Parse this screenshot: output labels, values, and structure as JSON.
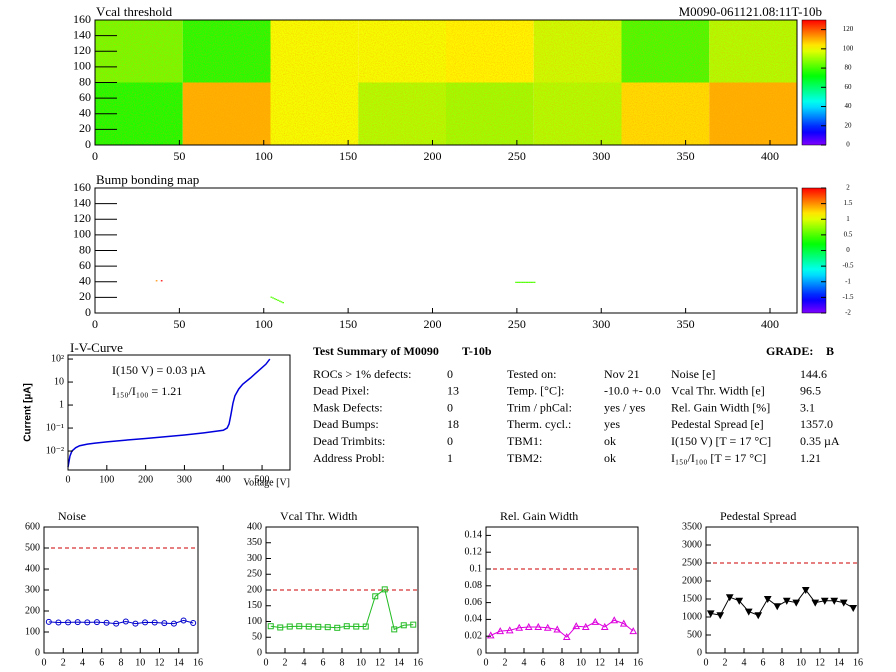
{
  "chart_data": [
    {
      "type": "heatmap",
      "title": "Vcal threshold",
      "subtitle": "M0090-061121.08:11T-10b",
      "xlim": [
        0,
        416
      ],
      "ylim": [
        0,
        160
      ],
      "xticks": [
        0,
        50,
        100,
        150,
        200,
        250,
        300,
        350,
        400
      ],
      "yticks": [
        0,
        20,
        40,
        60,
        80,
        100,
        120,
        140,
        160
      ],
      "xbins": [
        0,
        52,
        104,
        156,
        208,
        260,
        312,
        364,
        416
      ],
      "ybins": [
        0,
        80,
        160
      ],
      "values": [
        [
          75,
          110,
          100,
          92,
          90,
          92,
          105,
          110
        ],
        [
          85,
          76,
          100,
          100,
          102,
          95,
          80,
          92
        ]
      ],
      "zlim": [
        0,
        130
      ],
      "zticks": [
        0,
        20,
        40,
        60,
        80,
        100,
        120
      ]
    },
    {
      "type": "map",
      "title": "Bump bonding map",
      "xlim": [
        0,
        416
      ],
      "ylim": [
        0,
        160
      ],
      "xticks": [
        0,
        50,
        100,
        150,
        200,
        250,
        300,
        350,
        400
      ],
      "yticks": [
        0,
        20,
        40,
        60,
        80,
        100,
        120,
        140,
        160
      ],
      "x": [
        36,
        39,
        104,
        105,
        106,
        107,
        108,
        109,
        110,
        111,
        249,
        250,
        251,
        252,
        253,
        254,
        255,
        256,
        257,
        258,
        259,
        260
      ],
      "y": [
        41,
        41,
        20,
        19,
        18,
        17,
        16,
        15,
        14,
        13,
        39,
        39,
        39,
        39,
        39,
        39,
        39,
        39,
        39,
        39,
        39,
        39
      ],
      "values": [
        1.5,
        2,
        0.5,
        0.5,
        0.5,
        0.5,
        0.5,
        0.5,
        0.5,
        0.5,
        0.5,
        0.5,
        0.5,
        0.5,
        0.5,
        0.5,
        0.5,
        0.5,
        0.5,
        0.5,
        0.5,
        0.5
      ],
      "zlim": [
        -2,
        2
      ],
      "zticks": [
        -2,
        -1.5,
        -1,
        -0.5,
        0,
        0.5,
        1,
        1.5,
        2
      ]
    },
    {
      "type": "line",
      "title": "I-V-Curve",
      "xlabel": "Voltage [V]",
      "ylabel": "Current [µA]",
      "log_y": true,
      "color": "#0000dd",
      "annotations": [
        "I(150 V) = 0.03 µA",
        "I₁₅₀/I₁₀₀ = 1.21"
      ],
      "x": [
        0,
        5,
        10,
        20,
        30,
        50,
        70,
        100,
        150,
        200,
        250,
        300,
        350,
        400,
        410,
        415,
        420,
        425,
        430,
        440,
        450,
        470,
        490,
        510,
        520
      ],
      "values": [
        0.002,
        0.006,
        0.01,
        0.014,
        0.017,
        0.02,
        0.022,
        0.025,
        0.03,
        0.035,
        0.042,
        0.05,
        0.062,
        0.08,
        0.1,
        0.15,
        0.4,
        1.2,
        2.5,
        5,
        8,
        15,
        30,
        60,
        100
      ],
      "xlim": [
        0,
        572
      ],
      "ylim": [
        0.0015,
        150
      ],
      "xticks": [
        0,
        100,
        200,
        300,
        400,
        500
      ],
      "yticks": [
        {
          "value": 0.01,
          "label": "10⁻²"
        },
        {
          "value": 0.1,
          "label": "10⁻¹"
        },
        1,
        10,
        {
          "value": 100,
          "label": "10²"
        }
      ]
    },
    {
      "type": "line",
      "title": "Noise",
      "color": "#0000cc",
      "marker": "circle",
      "limit": 500,
      "x": [
        0.5,
        1.5,
        2.5,
        3.5,
        4.5,
        5.5,
        6.5,
        7.5,
        8.5,
        9.5,
        10.5,
        11.5,
        12.5,
        13.5,
        14.5,
        15.5
      ],
      "values": [
        148,
        145,
        146,
        147,
        146,
        147,
        144,
        140,
        150,
        140,
        146,
        145,
        142,
        140,
        155,
        143
      ],
      "xlim": [
        0,
        16
      ],
      "ylim": [
        0,
        600
      ],
      "xticks": [
        0,
        2,
        4,
        6,
        8,
        10,
        12,
        14,
        16
      ],
      "yticks": [
        0,
        100,
        200,
        300,
        400,
        500,
        600
      ]
    },
    {
      "type": "line",
      "title": "Vcal Thr. Width",
      "color": "#22bb22",
      "marker": "square",
      "limit": 200,
      "x": [
        0.5,
        1.5,
        2.5,
        3.5,
        4.5,
        5.5,
        6.5,
        7.5,
        8.5,
        9.5,
        10.5,
        11.5,
        12.5,
        13.5,
        14.5,
        15.5
      ],
      "values": [
        85,
        81,
        84,
        85,
        84,
        83,
        82,
        80,
        85,
        84,
        84,
        180,
        202,
        75,
        88,
        90
      ],
      "xlim": [
        0,
        16
      ],
      "ylim": [
        0,
        400
      ],
      "xticks": [
        0,
        2,
        4,
        6,
        8,
        10,
        12,
        14,
        16
      ],
      "yticks": [
        0,
        50,
        100,
        150,
        200,
        250,
        300,
        350,
        400
      ]
    },
    {
      "type": "line",
      "title": "Rel. Gain Width",
      "color": "#dd00dd",
      "marker": "triangle",
      "limit": 0.1,
      "x": [
        0.5,
        1.5,
        2.5,
        3.5,
        4.5,
        5.5,
        6.5,
        7.5,
        8.5,
        9.5,
        10.5,
        11.5,
        12.5,
        13.5,
        14.5,
        15.5
      ],
      "values": [
        0.021,
        0.026,
        0.027,
        0.03,
        0.031,
        0.031,
        0.03,
        0.028,
        0.019,
        0.032,
        0.031,
        0.037,
        0.031,
        0.039,
        0.035,
        0.026
      ],
      "xlim": [
        0,
        16
      ],
      "ylim": [
        0,
        0.15
      ],
      "xticks": [
        0,
        2,
        4,
        6,
        8,
        10,
        12,
        14,
        16
      ],
      "yticks": [
        0,
        0.02,
        0.04,
        0.06,
        0.08,
        0.1,
        0.12,
        0.14
      ]
    },
    {
      "type": "line",
      "title": "Pedestal Spread",
      "color": "#000000",
      "marker": "triangle-down",
      "limit": 2500,
      "x": [
        0.5,
        1.5,
        2.5,
        3.5,
        4.5,
        5.5,
        6.5,
        7.5,
        8.5,
        9.5,
        10.5,
        11.5,
        12.5,
        13.5,
        14.5,
        15.5
      ],
      "values": [
        1100,
        1050,
        1550,
        1450,
        1150,
        1050,
        1500,
        1300,
        1450,
        1400,
        1750,
        1400,
        1450,
        1450,
        1400,
        1250
      ],
      "xlim": [
        0,
        16
      ],
      "ylim": [
        0,
        3500
      ],
      "xticks": [
        0,
        2,
        4,
        6,
        8,
        10,
        12,
        14,
        16
      ],
      "yticks": [
        0,
        500,
        1000,
        1500,
        2000,
        2500,
        3000,
        3500
      ]
    }
  ],
  "summary": {
    "title": "Test Summary of M0090",
    "test": "T-10b",
    "grade_label": "GRADE:",
    "grade": "B",
    "columns": [
      [
        [
          "ROCs > 1% defects:",
          "0"
        ],
        [
          "Dead Pixel:",
          "13"
        ],
        [
          "Mask Defects:",
          "0"
        ],
        [
          "Dead Bumps:",
          "18"
        ],
        [
          "Dead Trimbits:",
          "0"
        ],
        [
          "Address Probl:",
          "1"
        ]
      ],
      [
        [
          "Tested on:",
          "Nov 21"
        ],
        [
          "Temp. [°C]:",
          "-10.0 +- 0.0"
        ],
        [
          "Trim / phCal:",
          "yes / yes"
        ],
        [
          "Therm. cycl.:",
          "yes"
        ],
        [
          "TBM1:",
          "ok"
        ],
        [
          "TBM2:",
          "ok"
        ]
      ],
      [
        [
          "Noise [e]",
          "144.6"
        ],
        [
          "Vcal Thr. Width [e]",
          "96.5"
        ],
        [
          "Rel. Gain Width [%]",
          "3.1"
        ],
        [
          "Pedestal Spread [e]",
          "1357.0"
        ],
        [
          "I(150 V) [T = 17 °C]",
          "0.35 µA"
        ],
        [
          "I₁₅₀/I₁₀₀  [T = 17 °C]",
          "1.21"
        ]
      ]
    ]
  }
}
